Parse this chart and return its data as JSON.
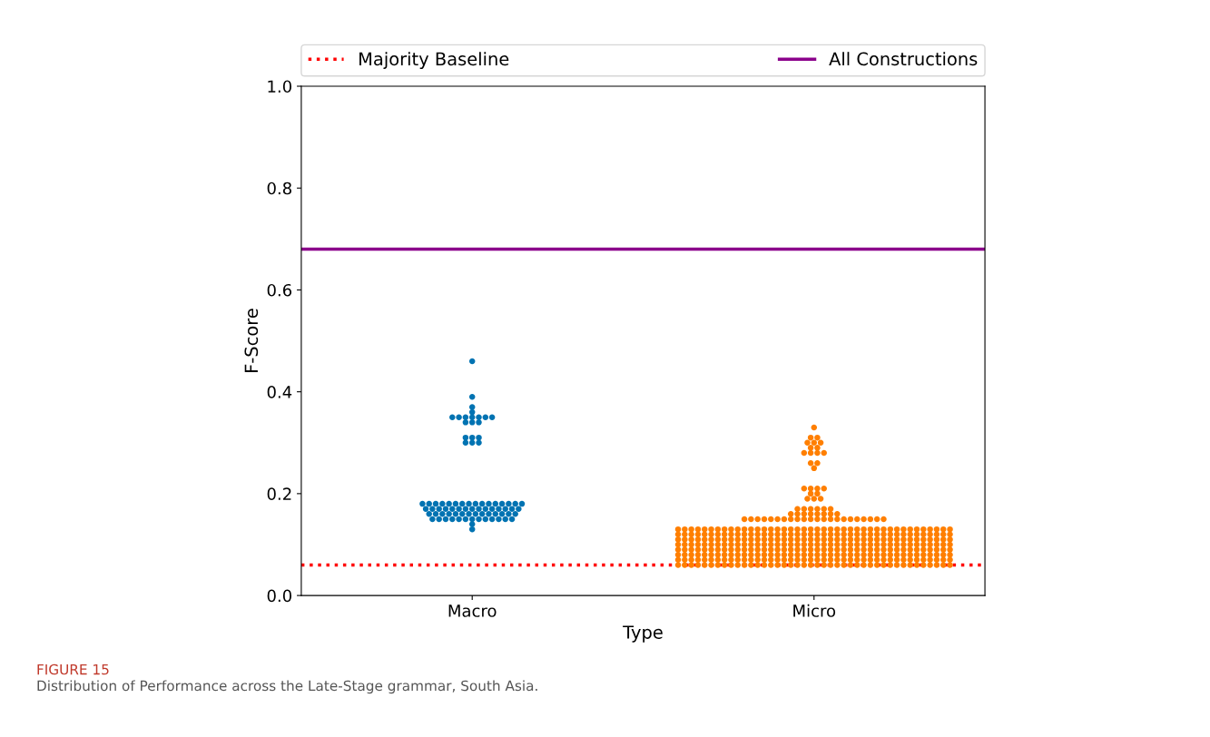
{
  "chart_data": {
    "type": "scatter",
    "categories": [
      "Macro",
      "Micro"
    ],
    "xlabel": "Type",
    "ylabel": "F-Score",
    "ylim": [
      0,
      1
    ],
    "yticks": [
      {
        "value": 0,
        "label": "0.0"
      },
      0.2,
      0.4,
      0.6,
      0.8,
      {
        "value": 1,
        "label": "1.0"
      }
    ],
    "grid": false,
    "legend": "top",
    "marker": "circle",
    "ref_lines": [
      {
        "axis": "y",
        "value": 0.06,
        "label": "Majority Baseline",
        "color": "#ff0000",
        "line_style": "dotted"
      },
      {
        "axis": "y",
        "value": 0.68,
        "label": "All Constructions",
        "color": "#8b008b",
        "line_style": "solid"
      }
    ],
    "annotations": [
      "FIGURE 15",
      "Distribution of Performance across the Late-Stage grammar, South Asia."
    ],
    "series": [
      {
        "color": "#0173b2",
        "x": [
          "Macro",
          "Macro",
          "Macro",
          "Macro",
          "Macro",
          "Macro",
          "Macro",
          "Macro",
          "Macro",
          "Macro",
          "Macro",
          "Macro",
          "Macro",
          "Macro",
          "Macro",
          "Macro",
          "Macro",
          "Macro",
          "Macro",
          "Macro",
          "Macro",
          "Macro",
          "Macro",
          "Macro",
          "Macro",
          "Macro",
          "Macro",
          "Macro",
          "Macro",
          "Macro",
          "Macro",
          "Macro",
          "Macro",
          "Macro",
          "Macro",
          "Macro",
          "Macro",
          "Macro",
          "Macro",
          "Macro",
          "Macro",
          "Macro",
          "Macro",
          "Macro",
          "Macro",
          "Macro",
          "Macro",
          "Macro",
          "Macro",
          "Macro",
          "Macro",
          "Macro",
          "Macro",
          "Macro",
          "Macro",
          "Macro",
          "Macro",
          "Macro",
          "Macro",
          "Macro",
          "Macro",
          "Macro",
          "Macro",
          "Macro",
          "Macro",
          "Macro",
          "Macro",
          "Macro",
          "Macro",
          "Macro",
          "Macro",
          "Macro",
          "Macro",
          "Macro",
          "Macro",
          "Macro",
          "Macro",
          "Macro",
          "Macro",
          "Macro"
        ],
        "values": [
          0.46,
          0.39,
          0.37,
          0.36,
          0.35,
          0.35,
          0.35,
          0.35,
          0.35,
          0.35,
          0.35,
          0.34,
          0.34,
          0.34,
          0.31,
          0.31,
          0.31,
          0.3,
          0.3,
          0.3,
          0.18,
          0.18,
          0.18,
          0.18,
          0.18,
          0.18,
          0.18,
          0.18,
          0.18,
          0.18,
          0.18,
          0.18,
          0.18,
          0.18,
          0.18,
          0.18,
          0.17,
          0.17,
          0.17,
          0.17,
          0.17,
          0.17,
          0.17,
          0.17,
          0.17,
          0.17,
          0.17,
          0.17,
          0.17,
          0.17,
          0.17,
          0.16,
          0.16,
          0.16,
          0.16,
          0.16,
          0.16,
          0.16,
          0.16,
          0.16,
          0.16,
          0.16,
          0.16,
          0.16,
          0.16,
          0.15,
          0.15,
          0.15,
          0.15,
          0.15,
          0.15,
          0.15,
          0.15,
          0.15,
          0.15,
          0.15,
          0.15,
          0.15,
          0.14,
          0.13
        ]
      },
      {
        "color": "#ff7f00",
        "x": [
          "Micro",
          "Micro",
          "Micro",
          "Micro",
          "Micro",
          "Micro",
          "Micro",
          "Micro",
          "Micro",
          "Micro",
          "Micro",
          "Micro",
          "Micro",
          "Micro",
          "Micro",
          "Micro",
          "Micro",
          "Micro",
          "Micro",
          "Micro",
          "Micro",
          "Micro",
          "Micro",
          "Micro",
          "Micro",
          "Micro",
          "Micro",
          "Micro",
          "Micro",
          "Micro",
          "Micro",
          "Micro",
          "Micro",
          "Micro",
          "Micro",
          "Micro",
          "Micro",
          "Micro",
          "Micro",
          "Micro",
          "Micro",
          "Micro",
          "Micro",
          "Micro",
          "Micro",
          "Micro",
          "Micro",
          "Micro",
          "Micro",
          "Micro",
          "Micro",
          "Micro",
          "Micro",
          "Micro",
          "Micro",
          "Micro",
          "Micro",
          "Micro",
          "Micro",
          "Micro",
          "Micro",
          "Micro",
          "Micro",
          "Micro",
          "Micro",
          "Micro",
          "Micro",
          "Micro",
          "Micro",
          "Micro",
          "Micro",
          "Micro",
          "Micro",
          "Micro",
          "Micro",
          "Micro",
          "Micro",
          "Micro",
          "Micro",
          "Micro",
          "Micro",
          "Micro",
          "Micro",
          "Micro",
          "Micro",
          "Micro",
          "Micro",
          "Micro",
          "Micro",
          "Micro",
          "Micro",
          "Micro",
          "Micro",
          "Micro",
          "Micro",
          "Micro",
          "Micro",
          "Micro",
          "Micro",
          "Micro",
          "Micro",
          "Micro",
          "Micro",
          "Micro",
          "Micro",
          "Micro",
          "Micro",
          "Micro",
          "Micro",
          "Micro",
          "Micro",
          "Micro",
          "Micro",
          "Micro",
          "Micro",
          "Micro",
          "Micro",
          "Micro",
          "Micro",
          "Micro",
          "Micro",
          "Micro",
          "Micro",
          "Micro",
          "Micro",
          "Micro",
          "Micro",
          "Micro",
          "Micro",
          "Micro",
          "Micro",
          "Micro",
          "Micro",
          "Micro",
          "Micro",
          "Micro",
          "Micro",
          "Micro",
          "Micro",
          "Micro",
          "Micro",
          "Micro",
          "Micro",
          "Micro",
          "Micro",
          "Micro",
          "Micro",
          "Micro",
          "Micro",
          "Micro",
          "Micro",
          "Micro",
          "Micro",
          "Micro",
          "Micro",
          "Micro",
          "Micro",
          "Micro",
          "Micro",
          "Micro",
          "Micro",
          "Micro",
          "Micro",
          "Micro",
          "Micro",
          "Micro",
          "Micro",
          "Micro",
          "Micro",
          "Micro",
          "Micro",
          "Micro",
          "Micro",
          "Micro",
          "Micro",
          "Micro",
          "Micro",
          "Micro",
          "Micro",
          "Micro",
          "Micro",
          "Micro",
          "Micro",
          "Micro",
          "Micro",
          "Micro",
          "Micro",
          "Micro",
          "Micro",
          "Micro",
          "Micro",
          "Micro",
          "Micro",
          "Micro",
          "Micro",
          "Micro",
          "Micro",
          "Micro",
          "Micro",
          "Micro",
          "Micro",
          "Micro",
          "Micro",
          "Micro",
          "Micro",
          "Micro",
          "Micro",
          "Micro",
          "Micro",
          "Micro",
          "Micro",
          "Micro",
          "Micro",
          "Micro",
          "Micro",
          "Micro",
          "Micro",
          "Micro",
          "Micro",
          "Micro",
          "Micro",
          "Micro",
          "Micro",
          "Micro",
          "Micro",
          "Micro",
          "Micro",
          "Micro",
          "Micro",
          "Micro",
          "Micro",
          "Micro",
          "Micro",
          "Micro",
          "Micro",
          "Micro",
          "Micro",
          "Micro",
          "Micro",
          "Micro",
          "Micro",
          "Micro",
          "Micro",
          "Micro",
          "Micro",
          "Micro",
          "Micro",
          "Micro",
          "Micro",
          "Micro",
          "Micro",
          "Micro",
          "Micro",
          "Micro",
          "Micro",
          "Micro",
          "Micro",
          "Micro",
          "Micro",
          "Micro",
          "Micro",
          "Micro",
          "Micro",
          "Micro",
          "Micro",
          "Micro",
          "Micro",
          "Micro",
          "Micro",
          "Micro",
          "Micro",
          "Micro",
          "Micro",
          "Micro",
          "Micro",
          "Micro",
          "Micro",
          "Micro",
          "Micro",
          "Micro",
          "Micro",
          "Micro",
          "Micro",
          "Micro",
          "Micro",
          "Micro",
          "Micro",
          "Micro",
          "Micro",
          "Micro",
          "Micro",
          "Micro",
          "Micro",
          "Micro",
          "Micro",
          "Micro",
          "Micro",
          "Micro",
          "Micro",
          "Micro",
          "Micro",
          "Micro",
          "Micro",
          "Micro",
          "Micro",
          "Micro",
          "Micro",
          "Micro",
          "Micro",
          "Micro",
          "Micro",
          "Micro",
          "Micro",
          "Micro",
          "Micro",
          "Micro",
          "Micro",
          "Micro",
          "Micro",
          "Micro",
          "Micro",
          "Micro",
          "Micro",
          "Micro",
          "Micro",
          "Micro",
          "Micro",
          "Micro",
          "Micro",
          "Micro",
          "Micro",
          "Micro",
          "Micro",
          "Micro",
          "Micro",
          "Micro",
          "Micro",
          "Micro",
          "Micro",
          "Micro",
          "Micro",
          "Micro",
          "Micro",
          "Micro",
          "Micro",
          "Micro",
          "Micro",
          "Micro",
          "Micro",
          "Micro",
          "Micro",
          "Micro",
          "Micro",
          "Micro",
          "Micro",
          "Micro",
          "Micro",
          "Micro",
          "Micro",
          "Micro",
          "Micro",
          "Micro",
          "Micro",
          "Micro",
          "Micro",
          "Micro",
          "Micro",
          "Micro",
          "Micro",
          "Micro",
          "Micro",
          "Micro",
          "Micro",
          "Micro",
          "Micro",
          "Micro",
          "Micro",
          "Micro",
          "Micro",
          "Micro",
          "Micro",
          "Micro",
          "Micro",
          "Micro",
          "Micro",
          "Micro",
          "Micro",
          "Micro",
          "Micro",
          "Micro",
          "Micro",
          "Micro",
          "Micro",
          "Micro",
          "Micro",
          "Micro"
        ],
        "values": [
          0.33,
          0.31,
          0.31,
          0.3,
          0.3,
          0.3,
          0.29,
          0.29,
          0.28,
          0.28,
          0.28,
          0.28,
          0.26,
          0.26,
          0.25,
          0.21,
          0.21,
          0.21,
          0.21,
          0.2,
          0.2,
          0.19,
          0.19,
          0.19,
          0.17,
          0.17,
          0.17,
          0.17,
          0.17,
          0.17,
          0.16,
          0.16,
          0.16,
          0.16,
          0.16,
          0.16,
          0.16,
          0.16,
          0.15,
          0.15,
          0.15,
          0.15,
          0.15,
          0.15,
          0.15,
          0.15,
          0.15,
          0.15,
          0.15,
          0.15,
          0.15,
          0.15,
          0.15,
          0.15,
          0.15,
          0.15,
          0.15,
          0.15,
          0.15,
          0.15,
          0.13,
          0.13,
          0.13,
          0.13,
          0.13,
          0.13,
          0.13,
          0.13,
          0.13,
          0.13,
          0.13,
          0.13,
          0.13,
          0.13,
          0.13,
          0.13,
          0.13,
          0.13,
          0.13,
          0.13,
          0.13,
          0.13,
          0.13,
          0.13,
          0.13,
          0.13,
          0.13,
          0.13,
          0.13,
          0.13,
          0.13,
          0.13,
          0.13,
          0.13,
          0.13,
          0.13,
          0.13,
          0.13,
          0.13,
          0.13,
          0.13,
          0.13,
          0.12,
          0.12,
          0.12,
          0.12,
          0.12,
          0.12,
          0.12,
          0.12,
          0.12,
          0.12,
          0.12,
          0.12,
          0.12,
          0.12,
          0.12,
          0.12,
          0.12,
          0.12,
          0.12,
          0.12,
          0.12,
          0.12,
          0.12,
          0.12,
          0.12,
          0.12,
          0.12,
          0.12,
          0.12,
          0.12,
          0.12,
          0.12,
          0.12,
          0.12,
          0.12,
          0.12,
          0.12,
          0.12,
          0.12,
          0.12,
          0.12,
          0.12,
          0.11,
          0.11,
          0.11,
          0.11,
          0.11,
          0.11,
          0.11,
          0.11,
          0.11,
          0.11,
          0.11,
          0.11,
          0.11,
          0.11,
          0.11,
          0.11,
          0.11,
          0.11,
          0.11,
          0.11,
          0.11,
          0.11,
          0.11,
          0.11,
          0.11,
          0.11,
          0.11,
          0.11,
          0.11,
          0.11,
          0.11,
          0.11,
          0.11,
          0.11,
          0.11,
          0.11,
          0.11,
          0.11,
          0.11,
          0.11,
          0.11,
          0.11,
          0.1,
          0.1,
          0.1,
          0.1,
          0.1,
          0.1,
          0.1,
          0.1,
          0.1,
          0.1,
          0.1,
          0.1,
          0.1,
          0.1,
          0.1,
          0.1,
          0.1,
          0.1,
          0.1,
          0.1,
          0.1,
          0.1,
          0.1,
          0.1,
          0.1,
          0.1,
          0.1,
          0.1,
          0.1,
          0.1,
          0.1,
          0.1,
          0.1,
          0.1,
          0.1,
          0.1,
          0.1,
          0.1,
          0.1,
          0.1,
          0.1,
          0.1,
          0.09,
          0.09,
          0.09,
          0.09,
          0.09,
          0.09,
          0.09,
          0.09,
          0.09,
          0.09,
          0.09,
          0.09,
          0.09,
          0.09,
          0.09,
          0.09,
          0.09,
          0.09,
          0.09,
          0.09,
          0.09,
          0.09,
          0.09,
          0.09,
          0.09,
          0.09,
          0.09,
          0.09,
          0.09,
          0.09,
          0.09,
          0.09,
          0.09,
          0.09,
          0.09,
          0.09,
          0.09,
          0.09,
          0.09,
          0.09,
          0.09,
          0.09,
          0.08,
          0.08,
          0.08,
          0.08,
          0.08,
          0.08,
          0.08,
          0.08,
          0.08,
          0.08,
          0.08,
          0.08,
          0.08,
          0.08,
          0.08,
          0.08,
          0.08,
          0.08,
          0.08,
          0.08,
          0.08,
          0.08,
          0.08,
          0.08,
          0.08,
          0.08,
          0.08,
          0.08,
          0.08,
          0.08,
          0.08,
          0.08,
          0.08,
          0.08,
          0.08,
          0.08,
          0.08,
          0.08,
          0.08,
          0.08,
          0.08,
          0.08,
          0.07,
          0.07,
          0.07,
          0.07,
          0.07,
          0.07,
          0.07,
          0.07,
          0.07,
          0.07,
          0.07,
          0.07,
          0.07,
          0.07,
          0.07,
          0.07,
          0.07,
          0.07,
          0.07,
          0.07,
          0.07,
          0.07,
          0.07,
          0.07,
          0.07,
          0.07,
          0.07,
          0.07,
          0.07,
          0.07,
          0.07,
          0.07,
          0.07,
          0.07,
          0.07,
          0.07,
          0.07,
          0.07,
          0.07,
          0.07,
          0.07,
          0.07,
          0.06,
          0.06,
          0.06,
          0.06,
          0.06,
          0.06,
          0.06,
          0.06,
          0.06,
          0.06,
          0.06,
          0.06,
          0.06,
          0.06,
          0.06,
          0.06,
          0.06,
          0.06,
          0.06,
          0.06,
          0.06,
          0.06,
          0.06,
          0.06,
          0.06,
          0.06,
          0.06,
          0.06,
          0.06,
          0.06,
          0.06,
          0.06,
          0.06,
          0.06,
          0.06,
          0.06,
          0.06,
          0.06,
          0.06,
          0.06,
          0.06,
          0.06
        ]
      }
    ]
  }
}
